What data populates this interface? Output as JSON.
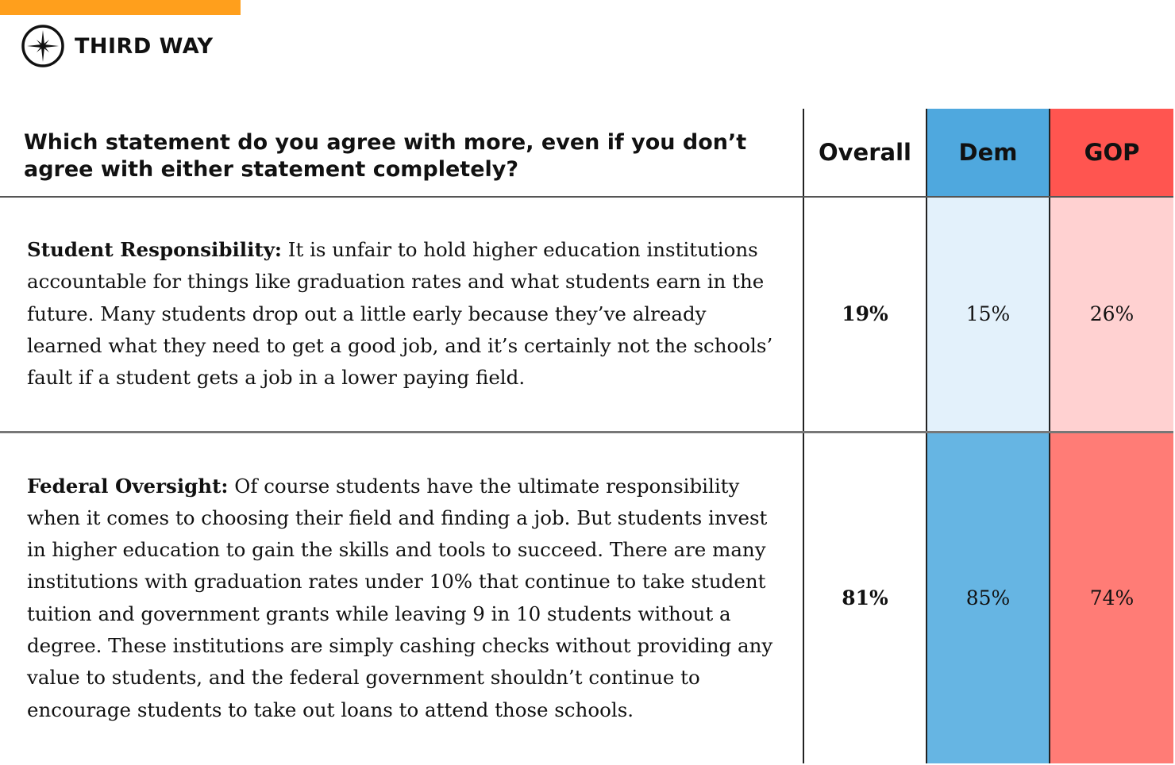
{
  "brand": {
    "name": "THIRD WAY",
    "accent": "#FF9F1C"
  },
  "chart_data": {
    "type": "table",
    "question": "Which statement do you agree with more, even if you don’t agree with either statement completely?",
    "columns": [
      "Overall",
      "Dem",
      "GOP"
    ],
    "column_colors": {
      "Dem": "#4FA8DE",
      "GOP": "#FF5550"
    },
    "rows": [
      {
        "label": "Student Responsibility:",
        "text": "It is unfair to hold higher education institutions accountable for things like graduation rates and what students earn in the future. Many students drop out a little early because they’ve already learned what they need to get a good job, and it’s certainly not the schools’ fault if a student gets a job in a lower paying field.",
        "values": [
          "19%",
          "15%",
          "26%"
        ],
        "colors": [
          "#FFFFFF",
          "#E3F1FB",
          "#FFD1D1"
        ]
      },
      {
        "label": "Federal Oversight:",
        "text": "Of course students have the ultimate responsibility when it comes to choosing their field and finding a job. But students invest in higher education to gain the skills and tools to succeed. There are many institutions with graduation rates under 10% that continue to take student tuition and government grants while leaving 9 in 10 students without a degree. These institutions are simply cashing checks without providing any value to students, and the federal government shouldn’t continue to encourage students to take out loans to attend those schools.",
        "values": [
          "81%",
          "85%",
          "74%"
        ],
        "colors": [
          "#FFFFFF",
          "#66B5E3",
          "#FF7C76"
        ]
      }
    ]
  }
}
